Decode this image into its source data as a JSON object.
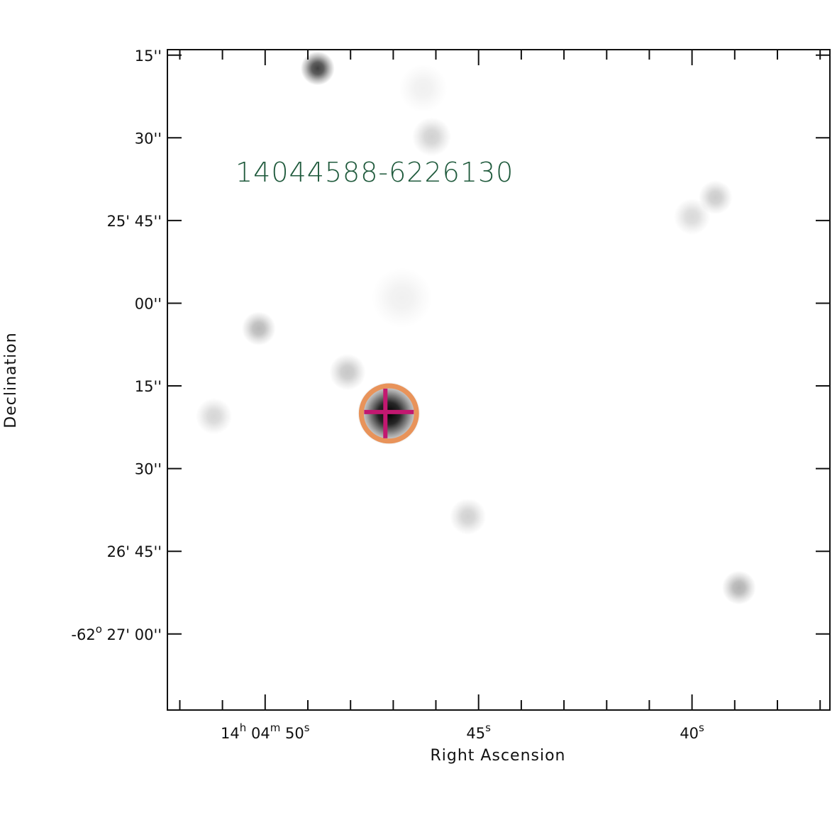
{
  "chart_data": {
    "type": "image",
    "source_label": "14044588-6226130",
    "xlabel": "Right Ascension",
    "ylabel": "Declination",
    "x_ticks": [
      {
        "value": 50,
        "parts": [
          {
            "text": "14",
            "sup": false
          },
          {
            "text": "h",
            "sup": true
          },
          {
            "text": " 04",
            "sup": false
          },
          {
            "text": "m",
            "sup": true
          },
          {
            "text": " 50",
            "sup": false
          },
          {
            "text": "s",
            "sup": true
          }
        ]
      },
      {
        "value": 45,
        "parts": [
          {
            "text": "45",
            "sup": false
          },
          {
            "text": "s",
            "sup": true
          }
        ]
      },
      {
        "value": 40,
        "parts": [
          {
            "text": "40",
            "sup": false
          },
          {
            "text": "s",
            "sup": true
          }
        ]
      }
    ],
    "y_ticks": [
      {
        "value": 15,
        "parts": [
          {
            "text": "15''",
            "sup": false
          }
        ]
      },
      {
        "value": 30,
        "parts": [
          {
            "text": "30''",
            "sup": false
          }
        ]
      },
      {
        "value": 45,
        "parts": [
          {
            "text": "25' 45''",
            "sup": false
          }
        ]
      },
      {
        "value": 60,
        "parts": [
          {
            "text": "00''",
            "sup": false
          }
        ]
      },
      {
        "value": 75,
        "parts": [
          {
            "text": "15''",
            "sup": false
          }
        ]
      },
      {
        "value": 90,
        "parts": [
          {
            "text": "30''",
            "sup": false
          }
        ]
      },
      {
        "value": 105,
        "parts": [
          {
            "text": "26' 45''",
            "sup": false
          }
        ]
      },
      {
        "value": 120,
        "parts": [
          {
            "text": "-62",
            "sup": false
          },
          {
            "text": "o",
            "sup": true
          },
          {
            "text": " 27' 00''",
            "sup": false
          }
        ]
      }
    ],
    "ra_range_s": [
      52.29,
      36.77
    ],
    "dec_range_arcsec": [
      14.0,
      133.8
    ],
    "x_minor_step_s": 1,
    "sources": [
      {
        "ra": 47.1,
        "dec": 80.0,
        "strength": 1.0,
        "spread": 2.6,
        "tag": "target"
      },
      {
        "ra": 48.77,
        "dec": 17.4,
        "strength": 0.75,
        "spread": 1.4
      },
      {
        "ra": 50.15,
        "dec": 64.6,
        "strength": 0.28,
        "spread": 1.4
      },
      {
        "ra": 48.07,
        "dec": 72.5,
        "strength": 0.22,
        "spread": 1.5
      },
      {
        "ra": 46.1,
        "dec": 29.8,
        "strength": 0.18,
        "spread": 1.6
      },
      {
        "ra": 39.45,
        "dec": 40.8,
        "strength": 0.2,
        "spread": 1.4
      },
      {
        "ra": 40.0,
        "dec": 44.3,
        "strength": 0.15,
        "spread": 1.5
      },
      {
        "ra": 51.2,
        "dec": 80.5,
        "strength": 0.16,
        "spread": 1.5
      },
      {
        "ra": 45.25,
        "dec": 98.7,
        "strength": 0.18,
        "spread": 1.5
      },
      {
        "ra": 38.9,
        "dec": 111.6,
        "strength": 0.3,
        "spread": 1.4
      },
      {
        "ra": 46.8,
        "dec": 59.0,
        "strength": 0.06,
        "spread": 2.5
      },
      {
        "ra": 46.3,
        "dec": 21.0,
        "strength": 0.06,
        "spread": 2.0
      }
    ],
    "target": {
      "ra": 47.1,
      "dec": 80.0,
      "circle_radius_arcsec": 5.0,
      "cross_half_arcsec": 4.5
    },
    "colors": {
      "label": "#1f5a3c",
      "circle": "#e8935a",
      "cross": "#c21870",
      "frame": "#111111",
      "ink": "#111111"
    }
  }
}
